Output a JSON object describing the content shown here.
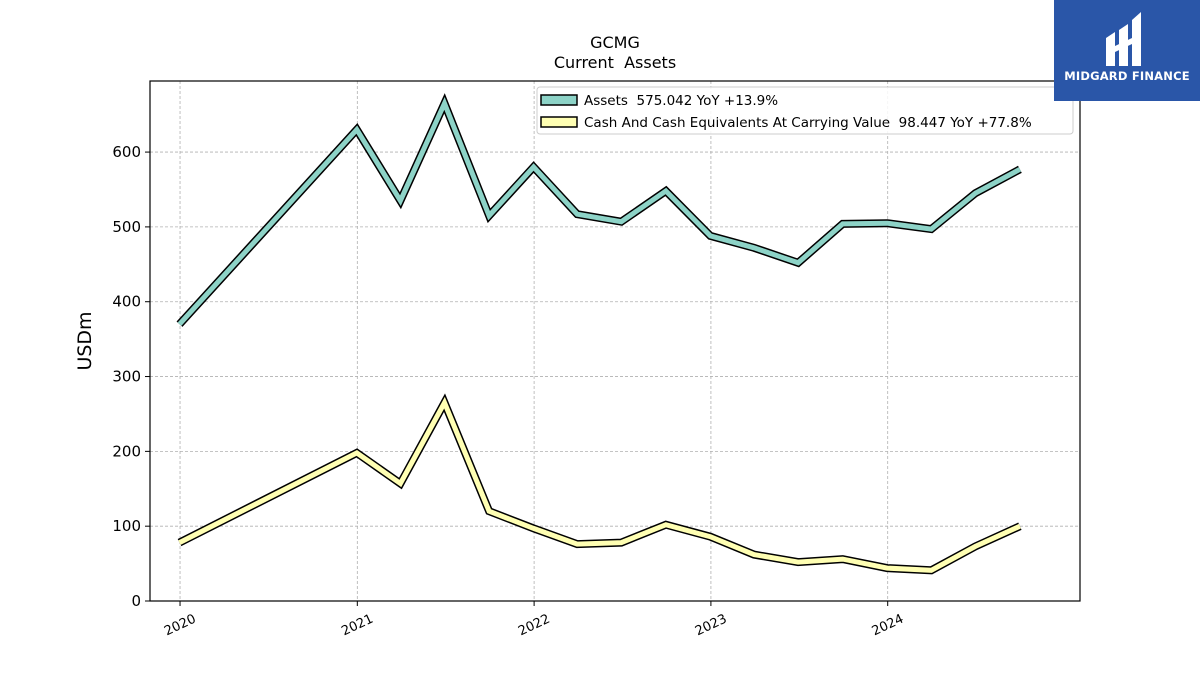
{
  "chart_data": {
    "type": "line",
    "title": "GCMG",
    "subtitle": "Current  Assets",
    "ylabel": "USDm",
    "xlabel": "",
    "ylim": [
      0,
      695
    ],
    "yticks": [
      0,
      100,
      200,
      300,
      400,
      500,
      600
    ],
    "x_ticks": [
      "2020",
      "2021",
      "2022",
      "2023",
      "2024"
    ],
    "grid": true,
    "legend_position": "top-right",
    "series": [
      {
        "name": "Assets  575.042 YoY +13.9%",
        "color": "#8dd3c7",
        "points": [
          [
            "2019-12-31",
            370
          ],
          [
            "2020-12-31",
            630
          ],
          [
            "2021-03-31",
            535
          ],
          [
            "2021-06-30",
            665
          ],
          [
            "2021-09-30",
            515
          ],
          [
            "2021-12-31",
            580
          ],
          [
            "2022-03-31",
            517
          ],
          [
            "2022-06-30",
            507
          ],
          [
            "2022-09-30",
            548
          ],
          [
            "2022-12-31",
            488
          ],
          [
            "2023-03-31",
            472
          ],
          [
            "2023-06-30",
            452
          ],
          [
            "2023-09-30",
            504
          ],
          [
            "2023-12-31",
            505
          ],
          [
            "2024-03-31",
            497
          ],
          [
            "2024-06-30",
            545
          ],
          [
            "2024-09-30",
            577
          ]
        ]
      },
      {
        "name": "Cash And Cash Equivalents At Carrying Value  98.447 YoY +77.8%",
        "color": "#ffffb3",
        "points": [
          [
            "2019-12-31",
            78
          ],
          [
            "2020-12-31",
            198
          ],
          [
            "2021-03-31",
            157
          ],
          [
            "2021-06-30",
            265
          ],
          [
            "2021-09-30",
            120
          ],
          [
            "2021-12-31",
            97
          ],
          [
            "2022-03-31",
            76
          ],
          [
            "2022-06-30",
            78
          ],
          [
            "2022-09-30",
            102
          ],
          [
            "2022-12-31",
            86
          ],
          [
            "2023-03-31",
            62
          ],
          [
            "2023-06-30",
            52
          ],
          [
            "2023-09-30",
            56
          ],
          [
            "2023-12-31",
            44
          ],
          [
            "2024-03-31",
            41
          ],
          [
            "2024-06-30",
            73
          ],
          [
            "2024-09-30",
            100
          ]
        ]
      }
    ]
  },
  "logo": {
    "text": "MIDGARD FINANCE"
  }
}
